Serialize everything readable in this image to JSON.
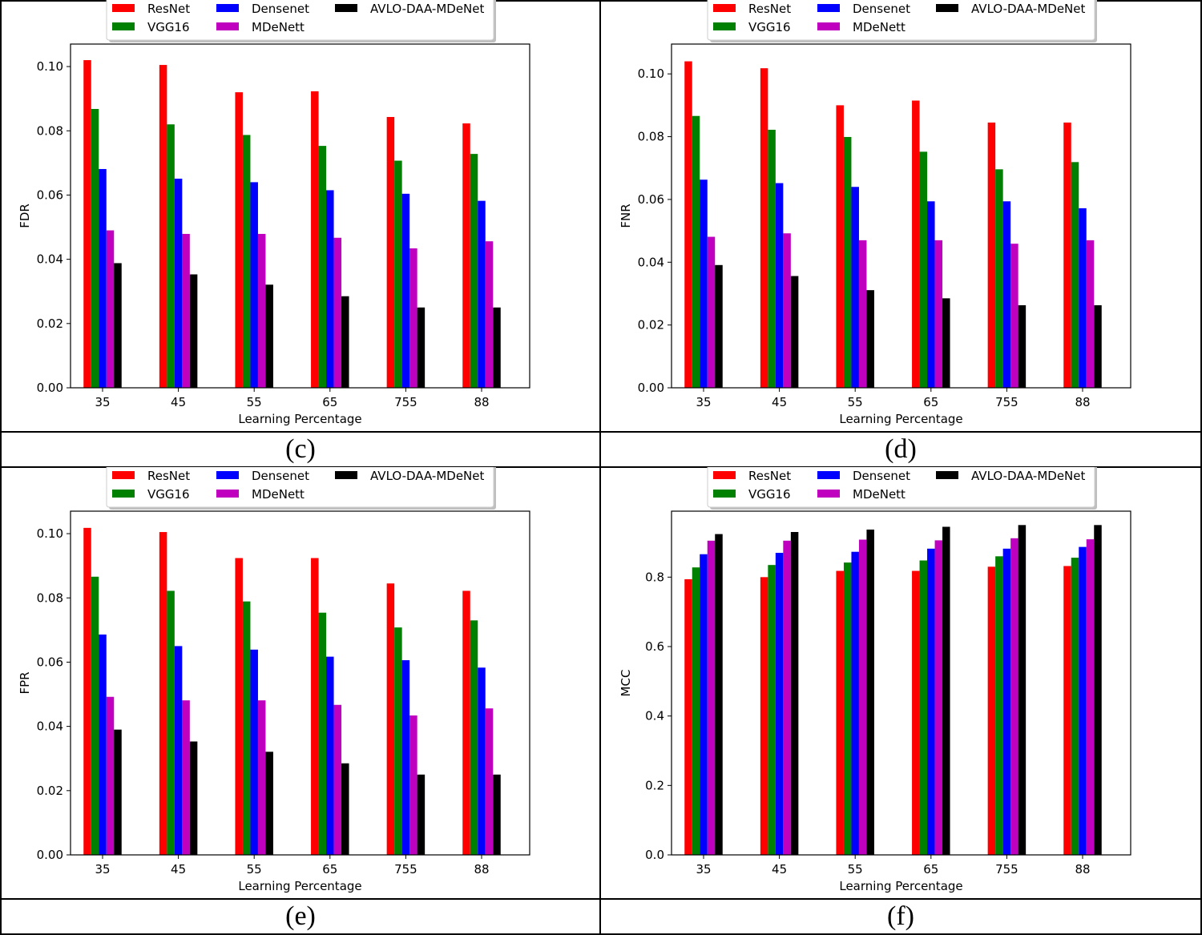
{
  "colors": {
    "ResNet": "#ff0000",
    "VGG16": "#008000",
    "Densenet": "#0000ff",
    "MDeNett": "#bf00bf",
    "AVLO-DAA-MDeNet": "#000000"
  },
  "chart_data": [
    {
      "panel": "(c)",
      "type": "bar",
      "xlabel": "Learning Percentage",
      "ylabel": "FDR",
      "categories": [
        "35",
        "45",
        "55",
        "65",
        "755",
        "88"
      ],
      "ylim": [
        0,
        0.107
      ],
      "yticks": [
        "0.00",
        "0.02",
        "0.04",
        "0.06",
        "0.08",
        "0.10"
      ],
      "legend": [
        "ResNet",
        "Densenet",
        "AVLO-DAA-MDeNet",
        "VGG16",
        "MDeNett"
      ],
      "series": [
        {
          "name": "ResNet",
          "values": [
            0.102,
            0.1005,
            0.092,
            0.0923,
            0.0843,
            0.0823
          ]
        },
        {
          "name": "VGG16",
          "values": [
            0.0868,
            0.082,
            0.0787,
            0.0753,
            0.0707,
            0.0728
          ]
        },
        {
          "name": "Densenet",
          "values": [
            0.0681,
            0.0651,
            0.064,
            0.0615,
            0.0604,
            0.0582
          ]
        },
        {
          "name": "MDeNett",
          "values": [
            0.049,
            0.0479,
            0.0479,
            0.0467,
            0.0434,
            0.0456
          ]
        },
        {
          "name": "AVLO-DAA-MDeNet",
          "values": [
            0.0388,
            0.0353,
            0.0321,
            0.0285,
            0.025,
            0.025
          ]
        }
      ]
    },
    {
      "panel": "(d)",
      "type": "bar",
      "xlabel": "Learning Percentage",
      "ylabel": "FNR",
      "categories": [
        "35",
        "45",
        "55",
        "65",
        "755",
        "88"
      ],
      "ylim": [
        0,
        0.1095
      ],
      "yticks": [
        "0.00",
        "0.02",
        "0.04",
        "0.06",
        "0.08",
        "0.10"
      ],
      "legend": [
        "ResNet",
        "Densenet",
        "AVLO-DAA-MDeNet",
        "VGG16",
        "MDeNett"
      ],
      "series": [
        {
          "name": "ResNet",
          "values": [
            0.104,
            0.1018,
            0.09,
            0.0915,
            0.0845,
            0.0845
          ]
        },
        {
          "name": "VGG16",
          "values": [
            0.0866,
            0.0822,
            0.0799,
            0.0752,
            0.0696,
            0.0719
          ]
        },
        {
          "name": "Densenet",
          "values": [
            0.0663,
            0.0652,
            0.064,
            0.0594,
            0.0594,
            0.0572
          ]
        },
        {
          "name": "MDeNett",
          "values": [
            0.0481,
            0.0492,
            0.047,
            0.047,
            0.0459,
            0.047
          ]
        },
        {
          "name": "AVLO-DAA-MDeNet",
          "values": [
            0.0391,
            0.0356,
            0.0311,
            0.0285,
            0.0263,
            0.0263
          ]
        }
      ]
    },
    {
      "panel": "(e)",
      "type": "bar",
      "xlabel": "Learning Percentage",
      "ylabel": "FPR",
      "categories": [
        "35",
        "45",
        "55",
        "65",
        "755",
        "88"
      ],
      "ylim": [
        0,
        0.107
      ],
      "yticks": [
        "0.00",
        "0.02",
        "0.04",
        "0.06",
        "0.08",
        "0.10"
      ],
      "legend": [
        "ResNet",
        "Densenet",
        "AVLO-DAA-MDeNet",
        "VGG16",
        "MDeNett"
      ],
      "series": [
        {
          "name": "ResNet",
          "values": [
            0.1018,
            0.1005,
            0.0924,
            0.0924,
            0.0845,
            0.0822
          ]
        },
        {
          "name": "VGG16",
          "values": [
            0.0866,
            0.0822,
            0.0789,
            0.0754,
            0.0708,
            0.073
          ]
        },
        {
          "name": "Densenet",
          "values": [
            0.0686,
            0.065,
            0.0639,
            0.0617,
            0.0606,
            0.0583
          ]
        },
        {
          "name": "MDeNett",
          "values": [
            0.0492,
            0.0481,
            0.0481,
            0.0467,
            0.0434,
            0.0456
          ]
        },
        {
          "name": "AVLO-DAA-MDeNet",
          "values": [
            0.039,
            0.0353,
            0.0321,
            0.0285,
            0.025,
            0.025
          ]
        }
      ]
    },
    {
      "panel": "(f)",
      "type": "bar",
      "xlabel": "Learning Percentage",
      "ylabel": "MCC",
      "categories": [
        "35",
        "45",
        "55",
        "65",
        "755",
        "88"
      ],
      "ylim": [
        0,
        0.99
      ],
      "yticks": [
        "0.0",
        "0.2",
        "0.4",
        "0.6",
        "0.8"
      ],
      "legend": [
        "ResNet",
        "Densenet",
        "AVLO-DAA-MDeNet",
        "VGG16",
        "MDeNett"
      ],
      "series": [
        {
          "name": "ResNet",
          "values": [
            0.794,
            0.8,
            0.818,
            0.818,
            0.83,
            0.832
          ]
        },
        {
          "name": "VGG16",
          "values": [
            0.828,
            0.835,
            0.842,
            0.848,
            0.86,
            0.856
          ]
        },
        {
          "name": "Densenet",
          "values": [
            0.866,
            0.87,
            0.873,
            0.882,
            0.882,
            0.887
          ]
        },
        {
          "name": "MDeNett",
          "values": [
            0.905,
            0.905,
            0.908,
            0.906,
            0.912,
            0.909
          ]
        },
        {
          "name": "AVLO-DAA-MDeNet",
          "values": [
            0.924,
            0.93,
            0.937,
            0.945,
            0.95,
            0.95
          ]
        }
      ]
    }
  ]
}
